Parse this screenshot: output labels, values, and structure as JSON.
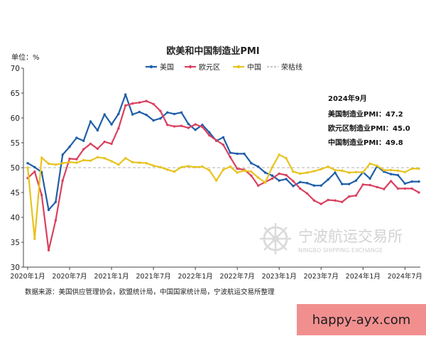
{
  "chart_data": {
    "type": "line",
    "title": "欧美和中国制造业PMI",
    "ylabel": "单位：%",
    "ylim": [
      30,
      70
    ],
    "yticks": [
      30,
      35,
      40,
      45,
      50,
      55,
      60,
      65,
      70
    ],
    "x_tick_labels": [
      "2020年1月",
      "2020年7月",
      "2021年1月",
      "2021年7月",
      "2022年1月",
      "2022年7月",
      "2023年1月",
      "2023年7月",
      "2024年1月",
      "2024年7月"
    ],
    "grid": false,
    "legend_position": "top",
    "legend_items": [
      "美国",
      "欧元区",
      "中国",
      "荣枯线"
    ],
    "reference_line": {
      "label": "荣枯线",
      "value": 50
    },
    "colors": {
      "us": "#1f5fa8",
      "eu": "#d9415f",
      "cn": "#e8c31e",
      "ref": "#b0b0b0"
    },
    "series": [
      {
        "name": "美国",
        "values": [
          50.9,
          50.1,
          49.1,
          41.5,
          43.1,
          52.6,
          54.2,
          56.0,
          55.4,
          59.3,
          57.5,
          60.7,
          58.7,
          60.8,
          64.7,
          60.7,
          61.2,
          60.6,
          59.5,
          59.9,
          61.1,
          60.8,
          61.1,
          58.8,
          57.6,
          58.6,
          57.1,
          55.4,
          56.1,
          53.0,
          52.8,
          52.8,
          50.9,
          50.2,
          49.0,
          48.4,
          47.4,
          47.7,
          46.3,
          47.1,
          46.9,
          46.4,
          46.4,
          47.6,
          49.0,
          46.7,
          46.7,
          47.4,
          49.1,
          47.8,
          50.3,
          49.2,
          48.7,
          48.5,
          46.8,
          47.2,
          47.2
        ],
        "color": "#1f5fa8"
      },
      {
        "name": "欧元区",
        "values": [
          47.9,
          49.2,
          44.5,
          33.4,
          39.4,
          47.4,
          51.8,
          51.7,
          53.7,
          54.8,
          53.8,
          55.2,
          54.8,
          57.9,
          62.5,
          62.9,
          63.1,
          63.4,
          62.8,
          61.4,
          58.6,
          58.3,
          58.4,
          58.0,
          58.7,
          58.2,
          56.5,
          55.5,
          54.6,
          52.1,
          49.8,
          49.6,
          48.4,
          46.4,
          47.1,
          47.8,
          48.8,
          48.5,
          47.3,
          45.8,
          44.8,
          43.4,
          42.7,
          43.5,
          43.4,
          43.1,
          44.2,
          44.4,
          46.6,
          46.5,
          46.1,
          45.7,
          47.3,
          45.8,
          45.8,
          45.8,
          45.0
        ],
        "color": "#d9415f"
      },
      {
        "name": "中国",
        "values": [
          50.0,
          35.7,
          52.0,
          50.8,
          50.6,
          50.9,
          51.1,
          51.0,
          51.5,
          51.4,
          52.1,
          51.9,
          51.3,
          50.6,
          51.9,
          51.1,
          51.0,
          50.9,
          50.4,
          50.1,
          49.6,
          49.2,
          50.1,
          50.3,
          50.1,
          50.2,
          49.5,
          47.4,
          49.6,
          50.2,
          49.0,
          49.4,
          49.2,
          48.0,
          47.0,
          50.1,
          52.6,
          51.9,
          49.2,
          48.8,
          49.0,
          49.3,
          49.7,
          50.2,
          49.5,
          49.4,
          49.0,
          49.1,
          49.1,
          50.8,
          50.4,
          49.5,
          49.5,
          49.4,
          49.1,
          49.8,
          49.8
        ],
        "color": "#e8c31e"
      }
    ]
  },
  "annotation": {
    "heading": "2024年9月",
    "lines": [
      "美国制造业PMI：47.2",
      "欧元区制造业PMI：45.0",
      "中国制造业PMI：49.8"
    ]
  },
  "watermark": {
    "cn_text": "宁波航运交易所",
    "en_text": "NINGBO SHIPPING EXCHANGE",
    "badge_text": "happy-ayx.com"
  },
  "source_note": "数据来源：美国供应管理协会，欧盟统计局，中国国家统计局，宁波航运交易所整理"
}
